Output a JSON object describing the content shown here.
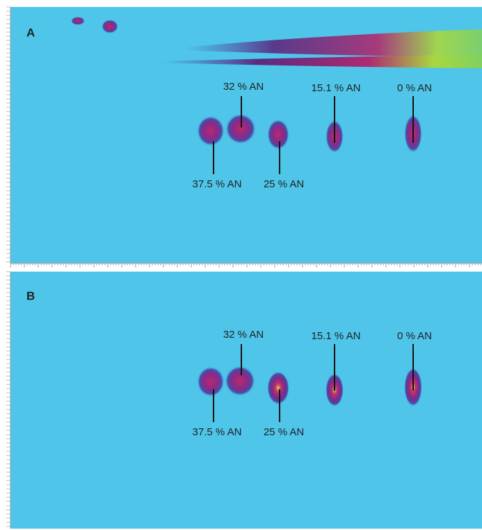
{
  "panels": [
    {
      "label": "A",
      "annotations": [
        "32 % AN",
        "15.1 % AN",
        "0 % AN",
        "37.5 % AN",
        "25 % AN"
      ]
    },
    {
      "label": "B",
      "annotations": [
        "32 % AN",
        "15.1 % AN",
        "0 % AN",
        "37.5 % AN",
        "25 % AN"
      ]
    }
  ]
}
